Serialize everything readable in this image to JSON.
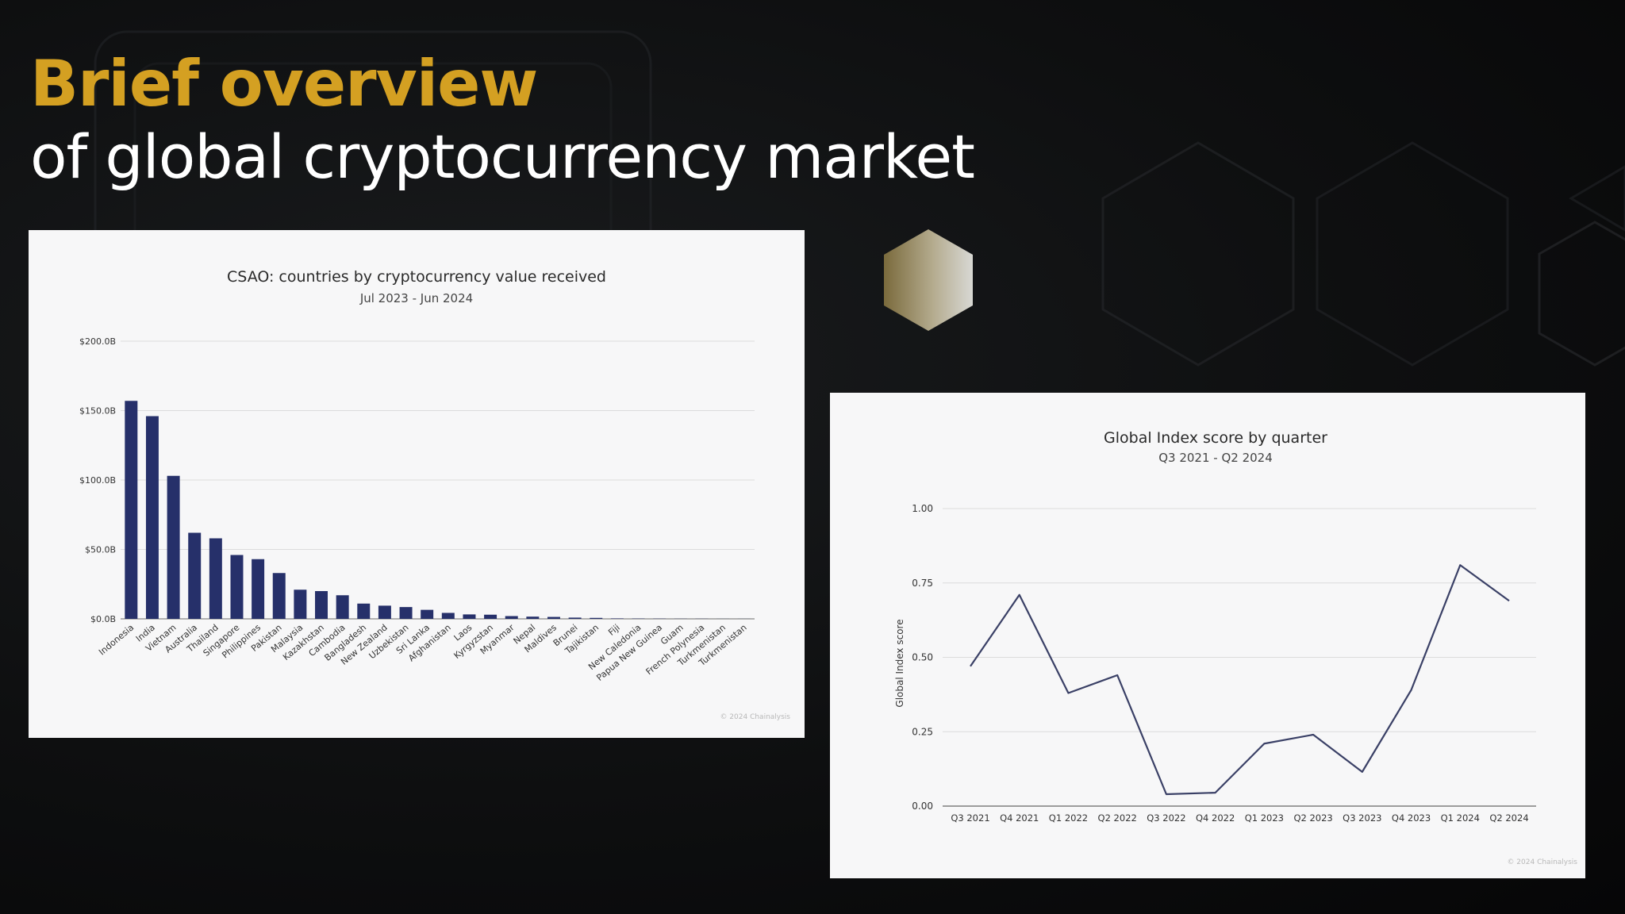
{
  "slide": {
    "title_highlight": "Brief overview",
    "title_rest": "of global cryptocurrency market"
  },
  "colors": {
    "accent": "#d4a022",
    "bar": "#26306a",
    "line": "#3a4066"
  },
  "chart_data": [
    {
      "type": "bar",
      "title": "CSAO: countries by cryptocurrency value received",
      "subtitle": "Jul 2023 - Jun 2024",
      "xlabel": "",
      "ylabel": "",
      "ylim": [
        0,
        200
      ],
      "yticks": [
        0,
        50,
        100,
        150,
        200
      ],
      "ytick_labels": [
        "$0.0B",
        "$50.0B",
        "$100.0B",
        "$150.0B",
        "$200.0B"
      ],
      "grid": true,
      "categories": [
        "Indonesia",
        "India",
        "Vietnam",
        "Australia",
        "Thailand",
        "Singapore",
        "Philippines",
        "Pakistan",
        "Malaysia",
        "Kazakhstan",
        "Cambodia",
        "Bangladesh",
        "New Zealand",
        "Uzbekistan",
        "Sri Lanka",
        "Afghanistan",
        "Laos",
        "Kyrgyzstan",
        "Myanmar",
        "Nepal",
        "Maldives",
        "Brunei",
        "Tajikistan",
        "Fiji",
        "New Caledonia",
        "Papua New Guinea",
        "Guam",
        "French Polynesia",
        "Turkmenistan",
        "Turkmenistan"
      ],
      "values": [
        157,
        146,
        103,
        62,
        58,
        46,
        43,
        33,
        21,
        20,
        17,
        11,
        9.5,
        8.5,
        6.5,
        4.3,
        3.2,
        3.0,
        2.0,
        1.6,
        1.4,
        0.9,
        0.7,
        0.3,
        0.2,
        0.15,
        0.1,
        0.1,
        0.05,
        0.05
      ],
      "source": "© 2024 Chainalysis"
    },
    {
      "type": "line",
      "title": "Global Index score by quarter",
      "subtitle": "Q3 2021 - Q2 2024",
      "xlabel": "",
      "ylabel": "Global Index score",
      "ylim": [
        0,
        1
      ],
      "yticks": [
        0,
        0.25,
        0.5,
        0.75,
        1
      ],
      "ytick_labels": [
        "0.00",
        "0.25",
        "0.50",
        "0.75",
        "1.00"
      ],
      "grid": true,
      "x": [
        "Q3 2021",
        "Q4 2021",
        "Q1 2022",
        "Q2 2022",
        "Q3 2022",
        "Q4 2022",
        "Q1 2023",
        "Q2 2023",
        "Q3 2023",
        "Q4 2023",
        "Q1 2024",
        "Q2 2024"
      ],
      "values": [
        0.47,
        0.71,
        0.38,
        0.44,
        0.04,
        0.045,
        0.21,
        0.24,
        0.115,
        0.39,
        0.81,
        0.69
      ],
      "source": "© 2024 Chainalysis"
    }
  ]
}
